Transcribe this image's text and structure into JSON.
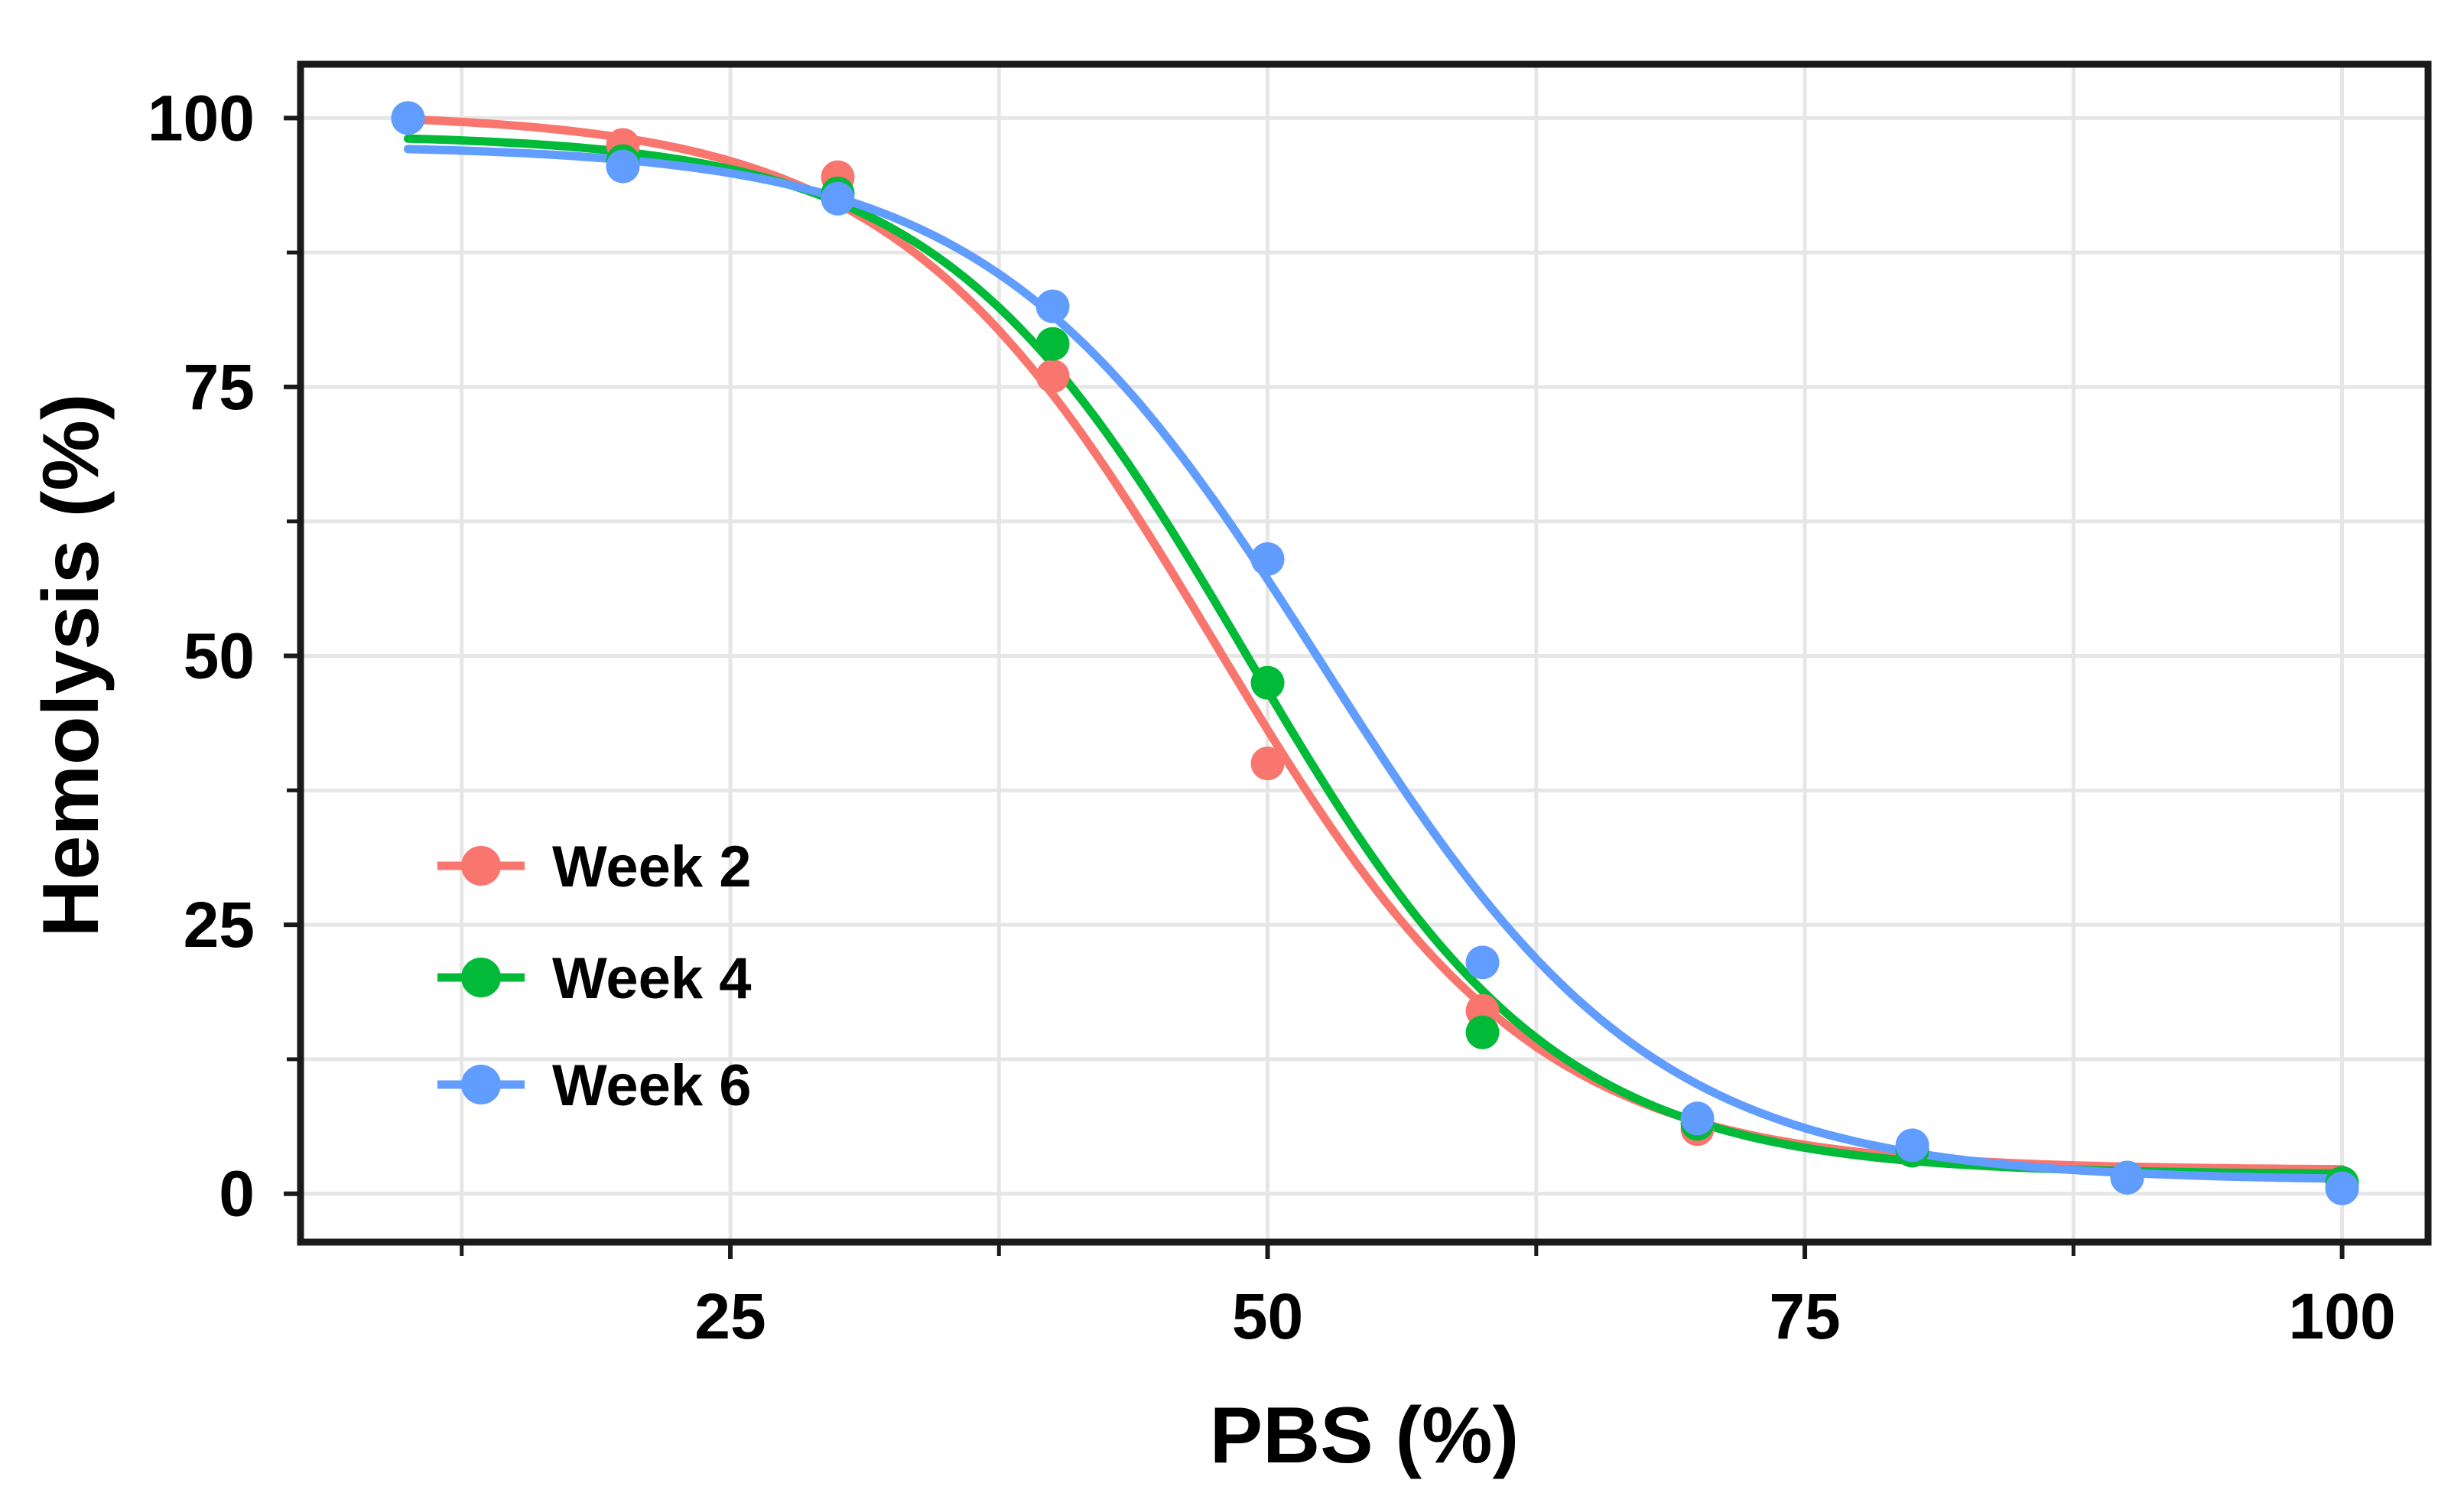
{
  "chart_data": {
    "type": "line",
    "title": "",
    "xlabel": "PBS (%)",
    "ylabel": "Hemolysis (%)",
    "xlim": [
      5,
      104
    ],
    "ylim": [
      -4.5,
      105
    ],
    "xticks": [
      25,
      50,
      75,
      100
    ],
    "yticks": [
      0,
      25,
      50,
      75,
      100
    ],
    "xticks_minor": [
      12.5,
      37.5,
      62.5,
      87.5
    ],
    "yticks_minor": [
      12.5,
      37.5,
      62.5,
      87.5
    ],
    "grid": true,
    "legend_position": "bottom-left",
    "series": [
      {
        "name": "Week 2",
        "color": "#F8766D",
        "x": [
          10,
          20,
          30,
          40,
          50,
          60,
          70,
          80,
          90,
          100
        ],
        "y": [
          100,
          97.5,
          94.5,
          76,
          40,
          17,
          6,
          4,
          1.5,
          0.5
        ],
        "fit": {
          "top": 100.5,
          "bottom": 2.2,
          "x50": 47.5,
          "slope": 0.135
        }
      },
      {
        "name": "Week 4",
        "color": "#00BA38",
        "x": [
          10,
          20,
          30,
          40,
          50,
          60,
          70,
          80,
          90,
          100
        ],
        "y": [
          100,
          96,
          93,
          79,
          47.5,
          15,
          6.5,
          4,
          1.5,
          1
        ],
        "fit": {
          "top": 98.5,
          "bottom": 1.8,
          "x50": 49,
          "slope": 0.14
        }
      },
      {
        "name": "Week 6",
        "color": "#619CFF",
        "x": [
          10,
          20,
          30,
          40,
          50,
          60,
          70,
          80,
          90,
          100
        ],
        "y": [
          100,
          95.5,
          92.5,
          82.5,
          59,
          21.5,
          7,
          4.5,
          1.5,
          0.5
        ],
        "fit": {
          "top": 97.5,
          "bottom": 1.2,
          "x50": 52.5,
          "slope": 0.13
        }
      }
    ]
  }
}
